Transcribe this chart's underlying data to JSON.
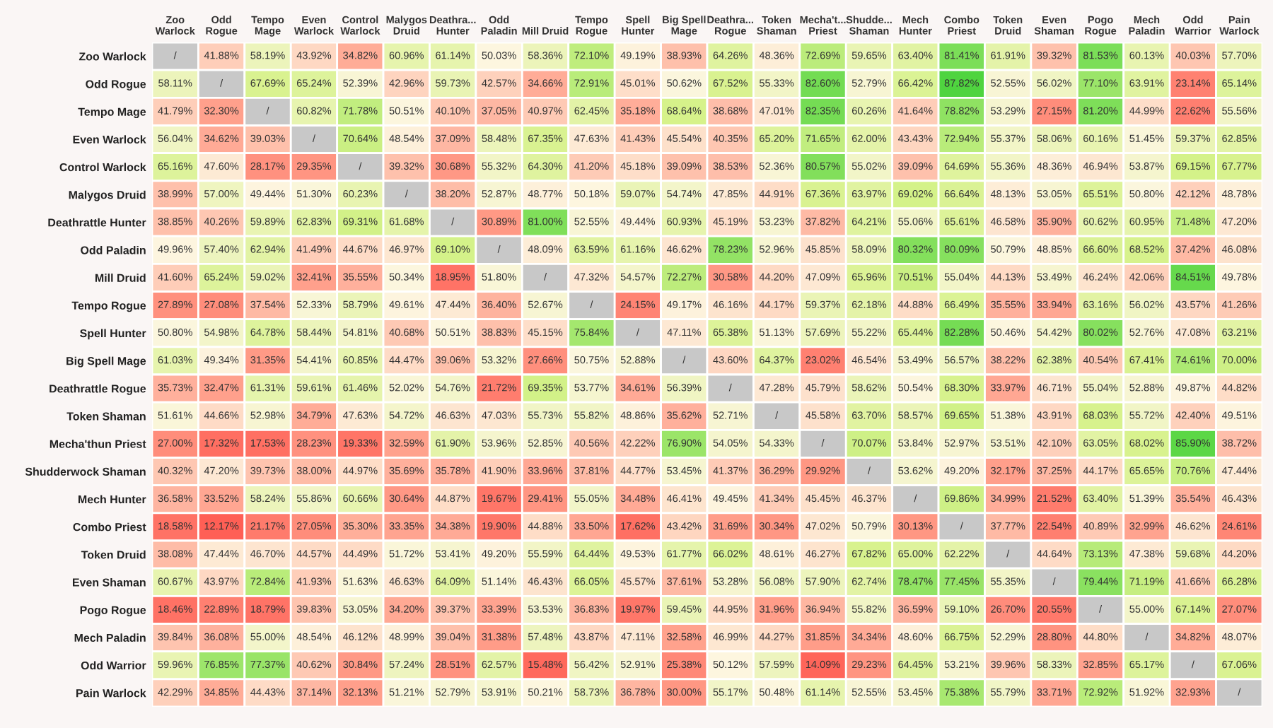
{
  "chart_data": {
    "type": "heatmap",
    "categories": [
      "Zoo\nWarlock",
      "Odd\nRogue",
      "Tempo\nMage",
      "Even\nWarlock",
      "Control\nWarlock",
      "Malygos\nDruid",
      "Deathra...\nHunter",
      "Odd\nPaladin",
      "Mill Druid",
      "Tempo\nRogue",
      "Spell\nHunter",
      "Big Spell\nMage",
      "Deathra...\nRogue",
      "Token\nShaman",
      "Mecha't...\nPriest",
      "Shudde...\nShaman",
      "Mech\nHunter",
      "Combo\nPriest",
      "Token\nDruid",
      "Even\nShaman",
      "Pogo\nRogue",
      "Mech\nPaladin",
      "Odd\nWarrior",
      "Pain\nWarlock"
    ],
    "y_categories": [
      "Zoo Warlock",
      "Odd Rogue",
      "Tempo Mage",
      "Even Warlock",
      "Control Warlock",
      "Malygos Druid",
      "Deathrattle Hunter",
      "Odd Paladin",
      "Mill Druid",
      "Tempo Rogue",
      "Spell Hunter",
      "Big Spell Mage",
      "Deathrattle Rogue",
      "Token Shaman",
      "Mecha'thun Priest",
      "Shudderwock Shaman",
      "Mech Hunter",
      "Combo Priest",
      "Token Druid",
      "Even Shaman",
      "Pogo Rogue",
      "Mech Paladin",
      "Odd Warrior",
      "Pain Warlock"
    ],
    "cells": [
      [
        null,
        41.88,
        58.19,
        43.92,
        34.82,
        60.96,
        61.14,
        50.03,
        58.36,
        72.1,
        49.19,
        38.93,
        64.26,
        48.36,
        72.69,
        59.65,
        63.4,
        81.41,
        61.91,
        39.32,
        81.53,
        60.13,
        40.03,
        57.7
      ],
      [
        58.11,
        null,
        67.69,
        65.24,
        52.39,
        42.96,
        59.73,
        42.57,
        34.66,
        72.91,
        45.01,
        50.62,
        67.52,
        55.33,
        82.6,
        52.79,
        66.42,
        87.82,
        52.55,
        56.02,
        77.1,
        63.91,
        23.14,
        65.14
      ],
      [
        41.79,
        32.3,
        null,
        60.82,
        71.78,
        50.51,
        40.1,
        37.05,
        40.97,
        62.45,
        35.18,
        68.64,
        38.68,
        47.01,
        82.35,
        60.26,
        41.64,
        78.82,
        53.29,
        27.15,
        81.2,
        44.99,
        22.62,
        55.56
      ],
      [
        56.04,
        34.62,
        39.03,
        null,
        70.64,
        48.54,
        37.09,
        58.48,
        67.35,
        47.63,
        41.43,
        45.54,
        40.35,
        65.2,
        71.65,
        62.0,
        43.43,
        72.94,
        55.37,
        58.06,
        60.16,
        51.45,
        59.37,
        62.85
      ],
      [
        65.16,
        47.6,
        28.17,
        29.35,
        null,
        39.32,
        30.68,
        55.32,
        64.3,
        41.2,
        45.18,
        39.09,
        38.53,
        52.36,
        80.57,
        55.02,
        39.09,
        64.69,
        55.36,
        48.36,
        46.94,
        53.87,
        69.15,
        67.77
      ],
      [
        38.99,
        57.0,
        49.44,
        51.3,
        60.23,
        null,
        38.2,
        52.87,
        48.77,
        50.18,
        59.07,
        54.74,
        47.85,
        44.91,
        67.36,
        63.97,
        69.02,
        66.64,
        48.13,
        53.05,
        65.51,
        50.8,
        42.12,
        48.78
      ],
      [
        38.85,
        40.26,
        59.89,
        62.83,
        69.31,
        61.68,
        null,
        30.89,
        81.0,
        52.55,
        49.44,
        60.93,
        45.19,
        53.23,
        37.82,
        64.21,
        55.06,
        65.61,
        46.58,
        35.9,
        60.62,
        60.95,
        71.48,
        47.2
      ],
      [
        49.96,
        57.4,
        62.94,
        41.49,
        44.67,
        46.97,
        69.1,
        null,
        48.09,
        63.59,
        61.16,
        46.62,
        78.23,
        52.96,
        45.85,
        58.09,
        80.32,
        80.09,
        50.79,
        48.85,
        66.6,
        68.52,
        37.42,
        46.08
      ],
      [
        41.6,
        65.24,
        59.02,
        32.41,
        35.55,
        50.34,
        18.95,
        51.8,
        null,
        47.32,
        54.57,
        72.27,
        30.58,
        44.2,
        47.09,
        65.96,
        70.51,
        55.04,
        44.13,
        53.49,
        46.24,
        42.06,
        84.51,
        49.78
      ],
      [
        27.89,
        27.08,
        37.54,
        52.33,
        58.79,
        49.61,
        47.44,
        36.4,
        52.67,
        null,
        24.15,
        49.17,
        46.16,
        44.17,
        59.37,
        62.18,
        44.88,
        66.49,
        35.55,
        33.94,
        63.16,
        56.02,
        43.57,
        41.26
      ],
      [
        50.8,
        54.98,
        64.78,
        58.44,
        54.81,
        40.68,
        50.51,
        38.83,
        45.15,
        75.84,
        null,
        47.11,
        65.38,
        51.13,
        57.69,
        55.22,
        65.44,
        82.28,
        50.46,
        54.42,
        80.02,
        52.76,
        47.08,
        63.21
      ],
      [
        61.03,
        49.34,
        31.35,
        54.41,
        60.85,
        44.47,
        39.06,
        53.32,
        27.66,
        50.75,
        52.88,
        null,
        43.6,
        64.37,
        23.02,
        46.54,
        53.49,
        56.57,
        38.22,
        62.38,
        40.54,
        67.41,
        74.61,
        70.0
      ],
      [
        35.73,
        32.47,
        61.31,
        59.61,
        61.46,
        52.02,
        54.76,
        21.72,
        69.35,
        53.77,
        34.61,
        56.39,
        null,
        47.28,
        45.79,
        58.62,
        50.54,
        68.3,
        33.97,
        46.71,
        55.04,
        52.88,
        49.87,
        44.82
      ],
      [
        51.61,
        44.66,
        52.98,
        34.79,
        47.63,
        54.72,
        46.63,
        47.03,
        55.73,
        55.82,
        48.86,
        35.62,
        52.71,
        null,
        45.58,
        63.7,
        58.57,
        69.65,
        51.38,
        43.91,
        68.03,
        55.72,
        42.4,
        49.51
      ],
      [
        27.0,
        17.32,
        17.53,
        28.23,
        19.33,
        32.59,
        61.9,
        53.96,
        52.85,
        40.56,
        42.22,
        76.9,
        54.05,
        54.33,
        null,
        70.07,
        53.84,
        52.97,
        53.51,
        42.1,
        63.05,
        68.02,
        85.9,
        38.72
      ],
      [
        40.32,
        47.2,
        39.73,
        38.0,
        44.97,
        35.69,
        35.78,
        41.9,
        33.96,
        37.81,
        44.77,
        53.45,
        41.37,
        36.29,
        29.92,
        null,
        53.62,
        49.2,
        32.17,
        37.25,
        44.17,
        65.65,
        70.76,
        47.44
      ],
      [
        36.58,
        33.52,
        58.24,
        55.86,
        60.66,
        30.64,
        44.87,
        19.67,
        29.41,
        55.05,
        34.48,
        46.41,
        49.45,
        41.34,
        45.45,
        46.37,
        null,
        69.86,
        34.99,
        21.52,
        63.4,
        51.39,
        35.54,
        46.43
      ],
      [
        18.58,
        12.17,
        21.17,
        27.05,
        35.3,
        33.35,
        34.38,
        19.9,
        44.88,
        33.5,
        17.62,
        43.42,
        31.69,
        30.34,
        47.02,
        50.79,
        30.13,
        null,
        37.77,
        22.54,
        40.89,
        32.99,
        46.62,
        24.61
      ],
      [
        38.08,
        47.44,
        46.7,
        44.57,
        44.49,
        51.72,
        53.41,
        49.2,
        55.59,
        64.44,
        49.53,
        61.77,
        66.02,
        48.61,
        46.27,
        67.82,
        65.0,
        62.22,
        null,
        44.64,
        73.13,
        47.38,
        59.68,
        44.2
      ],
      [
        60.67,
        43.97,
        72.84,
        41.93,
        51.63,
        46.63,
        64.09,
        51.14,
        46.43,
        66.05,
        45.57,
        37.61,
        53.28,
        56.08,
        57.9,
        62.74,
        78.47,
        77.45,
        55.35,
        null,
        79.44,
        71.19,
        41.66,
        66.28
      ],
      [
        18.46,
        22.89,
        18.79,
        39.83,
        53.05,
        34.2,
        39.37,
        33.39,
        53.53,
        36.83,
        19.97,
        59.45,
        44.95,
        31.96,
        36.94,
        55.82,
        36.59,
        59.1,
        26.7,
        20.55,
        null,
        55.0,
        67.14,
        27.07
      ],
      [
        39.84,
        36.08,
        55.0,
        48.54,
        46.12,
        48.99,
        39.04,
        31.38,
        57.48,
        43.87,
        47.11,
        32.58,
        46.99,
        44.27,
        31.85,
        34.34,
        48.6,
        66.75,
        52.29,
        28.8,
        44.8,
        null,
        34.82,
        48.07
      ],
      [
        59.96,
        76.85,
        77.37,
        40.62,
        30.84,
        57.24,
        28.51,
        62.57,
        15.48,
        56.42,
        52.91,
        25.38,
        50.12,
        57.59,
        14.09,
        29.23,
        64.45,
        53.21,
        39.96,
        58.33,
        32.85,
        65.17,
        null,
        67.06
      ],
      [
        42.29,
        34.85,
        44.43,
        37.14,
        32.13,
        51.21,
        52.79,
        53.91,
        50.21,
        58.73,
        36.78,
        30.0,
        55.17,
        50.48,
        61.14,
        52.55,
        53.45,
        75.38,
        55.79,
        33.71,
        72.92,
        51.92,
        32.93,
        null
      ]
    ],
    "cell_labels": [
      [
        "/",
        "41.88%",
        "58.19%",
        "43.92%",
        "34.82%",
        "60.96%",
        "61.14%",
        "50.03%",
        "58.36%",
        "72.10%",
        "49.19%",
        "38.93%",
        "64.26%",
        "48.36%",
        "72.69%",
        "59.65%",
        "63.40%",
        "81.41%",
        "61.91%",
        "39.32%",
        "81.53%",
        "60.13%",
        "40.03%",
        "57.70%"
      ],
      [
        "58.11%",
        "/",
        "67.69%",
        "65.24%",
        "52.39%",
        "42.96%",
        "59.73%",
        "42.57%",
        "34.66%",
        "72.91%",
        "45.01%",
        "50.62%",
        "67.52%",
        "55.33%",
        "82.60%",
        "52.79%",
        "66.42%",
        "87.82%",
        "52.55%",
        "56.02%",
        "77.10%",
        "63.91%",
        "23.14%",
        "65.14%"
      ],
      [
        "41.79%",
        "32.30%",
        "/",
        "60.82%",
        "71.78%",
        "50.51%",
        "40.10%",
        "37.05%",
        "40.97%",
        "62.45%",
        "35.18%",
        "68.64%",
        "38.68%",
        "47.01%",
        "82.35%",
        "60.26%",
        "41.64%",
        "78.82%",
        "53.29%",
        "27.15%",
        "81.20%",
        "44.99%",
        "22.62%",
        "55.56%"
      ],
      [
        "56.04%",
        "34.62%",
        "39.03%",
        "/",
        "70.64%",
        "48.54%",
        "37.09%",
        "58.48%",
        "67.35%",
        "47.63%",
        "41.43%",
        "45.54%",
        "40.35%",
        "65.20%",
        "71.65%",
        "62.00%",
        "43.43%",
        "72.94%",
        "55.37%",
        "58.06%",
        "60.16%",
        "51.45%",
        "59.37%",
        "62.85%"
      ],
      [
        "65.16%",
        "47.60%",
        "28.17%",
        "29.35%",
        "/",
        "39.32%",
        "30.68%",
        "55.32%",
        "64.30%",
        "41.20%",
        "45.18%",
        "39.09%",
        "38.53%",
        "52.36%",
        "80.57%",
        "55.02%",
        "39.09%",
        "64.69%",
        "55.36%",
        "48.36%",
        "46.94%",
        "53.87%",
        "69.15%",
        "67.77%"
      ],
      [
        "38.99%",
        "57.00%",
        "49.44%",
        "51.30%",
        "60.23%",
        "/",
        "38.20%",
        "52.87%",
        "48.77%",
        "50.18%",
        "59.07%",
        "54.74%",
        "47.85%",
        "44.91%",
        "67.36%",
        "63.97%",
        "69.02%",
        "66.64%",
        "48.13%",
        "53.05%",
        "65.51%",
        "50.80%",
        "42.12%",
        "48.78%"
      ],
      [
        "38.85%",
        "40.26%",
        "59.89%",
        "62.83%",
        "69.31%",
        "61.68%",
        "/",
        "30.89%",
        "81.00%",
        "52.55%",
        "49.44%",
        "60.93%",
        "45.19%",
        "53.23%",
        "37.82%",
        "64.21%",
        "55.06%",
        "65.61%",
        "46.58%",
        "35.90%",
        "60.62%",
        "60.95%",
        "71.48%",
        "47.20%"
      ],
      [
        "49.96%",
        "57.40%",
        "62.94%",
        "41.49%",
        "44.67%",
        "46.97%",
        "69.10%",
        "/",
        "48.09%",
        "63.59%",
        "61.16%",
        "46.62%",
        "78.23%",
        "52.96%",
        "45.85%",
        "58.09%",
        "80.32%",
        "80.09%",
        "50.79%",
        "48.85%",
        "66.60%",
        "68.52%",
        "37.42%",
        "46.08%"
      ],
      [
        "41.60%",
        "65.24%",
        "59.02%",
        "32.41%",
        "35.55%",
        "50.34%",
        "18.95%",
        "51.80%",
        "/",
        "47.32%",
        "54.57%",
        "72.27%",
        "30.58%",
        "44.20%",
        "47.09%",
        "65.96%",
        "70.51%",
        "55.04%",
        "44.13%",
        "53.49%",
        "46.24%",
        "42.06%",
        "84.51%",
        "49.78%"
      ],
      [
        "27.89%",
        "27.08%",
        "37.54%",
        "52.33%",
        "58.79%",
        "49.61%",
        "47.44%",
        "36.40%",
        "52.67%",
        "/",
        "24.15%",
        "49.17%",
        "46.16%",
        "44.17%",
        "59.37%",
        "62.18%",
        "44.88%",
        "66.49%",
        "35.55%",
        "33.94%",
        "63.16%",
        "56.02%",
        "43.57%",
        "41.26%"
      ],
      [
        "50.80%",
        "54.98%",
        "64.78%",
        "58.44%",
        "54.81%",
        "40.68%",
        "50.51%",
        "38.83%",
        "45.15%",
        "75.84%",
        "/",
        "47.11%",
        "65.38%",
        "51.13%",
        "57.69%",
        "55.22%",
        "65.44%",
        "82.28%",
        "50.46%",
        "54.42%",
        "80.02%",
        "52.76%",
        "47.08%",
        "63.21%"
      ],
      [
        "61.03%",
        "49.34%",
        "31.35%",
        "54.41%",
        "60.85%",
        "44.47%",
        "39.06%",
        "53.32%",
        "27.66%",
        "50.75%",
        "52.88%",
        "/",
        "43.60%",
        "64.37%",
        "23.02%",
        "46.54%",
        "53.49%",
        "56.57%",
        "38.22%",
        "62.38%",
        "40.54%",
        "67.41%",
        "74.61%",
        "70.00%"
      ],
      [
        "35.73%",
        "32.47%",
        "61.31%",
        "59.61%",
        "61.46%",
        "52.02%",
        "54.76%",
        "21.72%",
        "69.35%",
        "53.77%",
        "34.61%",
        "56.39%",
        "/",
        "47.28%",
        "45.79%",
        "58.62%",
        "50.54%",
        "68.30%",
        "33.97%",
        "46.71%",
        "55.04%",
        "52.88%",
        "49.87%",
        "44.82%"
      ],
      [
        "51.61%",
        "44.66%",
        "52.98%",
        "34.79%",
        "47.63%",
        "54.72%",
        "46.63%",
        "47.03%",
        "55.73%",
        "55.82%",
        "48.86%",
        "35.62%",
        "52.71%",
        "/",
        "45.58%",
        "63.70%",
        "58.57%",
        "69.65%",
        "51.38%",
        "43.91%",
        "68.03%",
        "55.72%",
        "42.40%",
        "49.51%"
      ],
      [
        "27.00%",
        "17.32%",
        "17.53%",
        "28.23%",
        "19.33%",
        "32.59%",
        "61.90%",
        "53.96%",
        "52.85%",
        "40.56%",
        "42.22%",
        "76.90%",
        "54.05%",
        "54.33%",
        "/",
        "70.07%",
        "53.84%",
        "52.97%",
        "53.51%",
        "42.10%",
        "63.05%",
        "68.02%",
        "85.90%",
        "38.72%"
      ],
      [
        "40.32%",
        "47.20%",
        "39.73%",
        "38.00%",
        "44.97%",
        "35.69%",
        "35.78%",
        "41.90%",
        "33.96%",
        "37.81%",
        "44.77%",
        "53.45%",
        "41.37%",
        "36.29%",
        "29.92%",
        "/",
        "53.62%",
        "49.20%",
        "32.17%",
        "37.25%",
        "44.17%",
        "65.65%",
        "70.76%",
        "47.44%"
      ],
      [
        "36.58%",
        "33.52%",
        "58.24%",
        "55.86%",
        "60.66%",
        "30.64%",
        "44.87%",
        "19.67%",
        "29.41%",
        "55.05%",
        "34.48%",
        "46.41%",
        "49.45%",
        "41.34%",
        "45.45%",
        "46.37%",
        "/",
        "69.86%",
        "34.99%",
        "21.52%",
        "63.40%",
        "51.39%",
        "35.54%",
        "46.43%"
      ],
      [
        "18.58%",
        "12.17%",
        "21.17%",
        "27.05%",
        "35.30%",
        "33.35%",
        "34.38%",
        "19.90%",
        "44.88%",
        "33.50%",
        "17.62%",
        "43.42%",
        "31.69%",
        "30.34%",
        "47.02%",
        "50.79%",
        "30.13%",
        "/",
        "37.77%",
        "22.54%",
        "40.89%",
        "32.99%",
        "46.62%",
        "24.61%"
      ],
      [
        "38.08%",
        "47.44%",
        "46.70%",
        "44.57%",
        "44.49%",
        "51.72%",
        "53.41%",
        "49.20%",
        "55.59%",
        "64.44%",
        "49.53%",
        "61.77%",
        "66.02%",
        "48.61%",
        "46.27%",
        "67.82%",
        "65.00%",
        "62.22%",
        "/",
        "44.64%",
        "73.13%",
        "47.38%",
        "59.68%",
        "44.20%"
      ],
      [
        "60.67%",
        "43.97%",
        "72.84%",
        "41.93%",
        "51.63%",
        "46.63%",
        "64.09%",
        "51.14%",
        "46.43%",
        "66.05%",
        "45.57%",
        "37.61%",
        "53.28%",
        "56.08%",
        "57.90%",
        "62.74%",
        "78.47%",
        "77.45%",
        "55.35%",
        "/",
        "79.44%",
        "71.19%",
        "41.66%",
        "66.28%"
      ],
      [
        "18.46%",
        "22.89%",
        "18.79%",
        "39.83%",
        "53.05%",
        "34.20%",
        "39.37%",
        "33.39%",
        "53.53%",
        "36.83%",
        "19.97%",
        "59.45%",
        "44.95%",
        "31.96%",
        "36.94%",
        "55.82%",
        "36.59%",
        "59.10%",
        "26.70%",
        "20.55%",
        "/",
        "55.00%",
        "67.14%",
        "27.07%"
      ],
      [
        "39.84%",
        "36.08%",
        "55.00%",
        "48.54%",
        "46.12%",
        "48.99%",
        "39.04%",
        "31.38%",
        "57.48%",
        "43.87%",
        "47.11%",
        "32.58%",
        "46.99%",
        "44.27%",
        "31.85%",
        "34.34%",
        "48.60%",
        "66.75%",
        "52.29%",
        "28.80%",
        "44.80%",
        "/",
        "34.82%",
        "48.07%"
      ],
      [
        "59.96%",
        "76.85%",
        "77.37%",
        "40.62%",
        "30.84%",
        "57.24%",
        "28.51%",
        "62.57%",
        "15.48%",
        "56.42%",
        "52.91%",
        "25.38%",
        "50.12%",
        "57.59%",
        "14.09%",
        "29.23%",
        "64.45%",
        "53.21%",
        "39.96%",
        "58.33%",
        "32.85%",
        "65.17%",
        "/",
        "67.06%"
      ],
      [
        "42.29%",
        "34.85%",
        "44.43%",
        "37.14%",
        "32.13%",
        "51.21%",
        "52.79%",
        "53.91%",
        "50.21%",
        "58.73%",
        "36.78%",
        "30.00%",
        "55.17%",
        "50.48%",
        "61.14%",
        "52.55%",
        "53.45%",
        "75.38%",
        "55.79%",
        "33.71%",
        "72.92%",
        "51.92%",
        "32.93%",
        "/"
      ]
    ]
  }
}
